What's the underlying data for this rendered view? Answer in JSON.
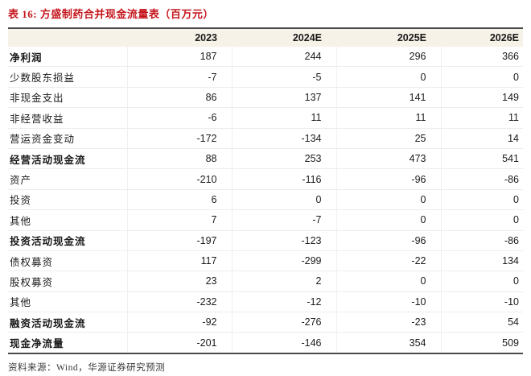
{
  "title": "表 16: 方盛制药合并现金流量表（百万元）",
  "table": {
    "columns": [
      "2023",
      "2024E",
      "2025E",
      "2026E"
    ],
    "rows": [
      {
        "label": "净利润",
        "bold": true,
        "values": [
          "187",
          "244",
          "296",
          "366"
        ]
      },
      {
        "label": "少数股东损益",
        "bold": false,
        "values": [
          "-7",
          "-5",
          "0",
          "0"
        ]
      },
      {
        "label": "非现金支出",
        "bold": false,
        "values": [
          "86",
          "137",
          "141",
          "149"
        ]
      },
      {
        "label": "非经营收益",
        "bold": false,
        "values": [
          "-6",
          "11",
          "11",
          "11"
        ]
      },
      {
        "label": "营运资金变动",
        "bold": false,
        "values": [
          "-172",
          "-134",
          "25",
          "14"
        ]
      },
      {
        "label": "经营活动现金流",
        "bold": true,
        "values": [
          "88",
          "253",
          "473",
          "541"
        ]
      },
      {
        "label": "资产",
        "bold": false,
        "values": [
          "-210",
          "-116",
          "-96",
          "-86"
        ]
      },
      {
        "label": "投资",
        "bold": false,
        "values": [
          "6",
          "0",
          "0",
          "0"
        ]
      },
      {
        "label": "其他",
        "bold": false,
        "values": [
          "7",
          "-7",
          "0",
          "0"
        ]
      },
      {
        "label": "投资活动现金流",
        "bold": true,
        "values": [
          "-197",
          "-123",
          "-96",
          "-86"
        ]
      },
      {
        "label": "债权募资",
        "bold": false,
        "values": [
          "117",
          "-299",
          "-22",
          "134"
        ]
      },
      {
        "label": "股权募资",
        "bold": false,
        "values": [
          "23",
          "2",
          "0",
          "0"
        ]
      },
      {
        "label": "其他",
        "bold": false,
        "values": [
          "-232",
          "-12",
          "-10",
          "-10"
        ]
      },
      {
        "label": "融资活动现金流",
        "bold": true,
        "values": [
          "-92",
          "-276",
          "-23",
          "54"
        ]
      },
      {
        "label": "现金净流量",
        "bold": true,
        "values": [
          "-201",
          "-146",
          "354",
          "509"
        ]
      }
    ]
  },
  "footer": {
    "source": "资料来源：Wind，华源证券研究预测"
  },
  "colors": {
    "title_red": "#C5161D",
    "header_bg": "#F7F2E7",
    "border_dark": "#4A4A4A",
    "row_line": "#EDEDED"
  },
  "chart_data": {
    "type": "table",
    "title": "方盛制药合并现金流量表（百万元）",
    "categories": [
      "2023",
      "2024E",
      "2025E",
      "2026E"
    ],
    "series": [
      {
        "name": "净利润",
        "values": [
          187,
          244,
          296,
          366
        ]
      },
      {
        "name": "少数股东损益",
        "values": [
          -7,
          -5,
          0,
          0
        ]
      },
      {
        "name": "非现金支出",
        "values": [
          86,
          137,
          141,
          149
        ]
      },
      {
        "name": "非经营收益",
        "values": [
          -6,
          11,
          11,
          11
        ]
      },
      {
        "name": "营运资金变动",
        "values": [
          -172,
          -134,
          25,
          14
        ]
      },
      {
        "name": "经营活动现金流",
        "values": [
          88,
          253,
          473,
          541
        ]
      },
      {
        "name": "资产",
        "values": [
          -210,
          -116,
          -96,
          -86
        ]
      },
      {
        "name": "投资",
        "values": [
          6,
          0,
          0,
          0
        ]
      },
      {
        "name": "其他",
        "values": [
          7,
          -7,
          0,
          0
        ]
      },
      {
        "name": "投资活动现金流",
        "values": [
          -197,
          -123,
          -96,
          -86
        ]
      },
      {
        "name": "债权募资",
        "values": [
          117,
          -299,
          -22,
          134
        ]
      },
      {
        "name": "股权募资",
        "values": [
          23,
          2,
          0,
          0
        ]
      },
      {
        "name": "其他",
        "values": [
          -232,
          -12,
          -10,
          -10
        ]
      },
      {
        "name": "融资活动现金流",
        "values": [
          -92,
          -276,
          -23,
          54
        ]
      },
      {
        "name": "现金净流量",
        "values": [
          -201,
          -146,
          354,
          509
        ]
      }
    ]
  }
}
